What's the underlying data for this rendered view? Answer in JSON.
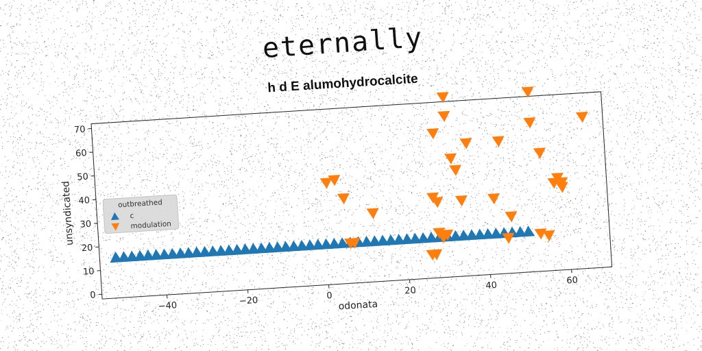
{
  "title": "eternally",
  "chart_data": {
    "type": "scatter",
    "title": "h d E alumohydrocalcite",
    "xlabel": "odonata",
    "ylabel": "unsyndicated",
    "xlim": [
      -56,
      70
    ],
    "ylim": [
      -2,
      72
    ],
    "xticks": [
      -40,
      -20,
      0,
      20,
      40,
      60
    ],
    "yticks": [
      0,
      10,
      20,
      30,
      40,
      50,
      60,
      70
    ],
    "grid": false,
    "legend": {
      "title": "outbreathed",
      "placement": "center-left"
    },
    "series": [
      {
        "name": "c",
        "marker": "triangle-up",
        "color": "#1f77b4",
        "x": [
          -52,
          -50,
          -48,
          -46,
          -44,
          -42,
          -40,
          -38,
          -36,
          -34,
          -32,
          -30,
          -28,
          -26,
          -24,
          -22,
          -20,
          -18,
          -16,
          -14,
          -12,
          -10,
          -8,
          -6,
          -4,
          -2,
          0,
          2,
          4,
          6,
          8,
          10,
          12,
          14,
          16,
          18,
          20,
          22,
          24,
          26,
          28,
          30,
          32,
          34,
          36,
          38,
          40,
          42,
          44,
          46,
          48,
          50
        ],
        "y": [
          15,
          15,
          15,
          15,
          15,
          15,
          15,
          15,
          15,
          15,
          15,
          15,
          15,
          15,
          15,
          15,
          15,
          15,
          15,
          15,
          15,
          15,
          15,
          15,
          15,
          15,
          15,
          15,
          15,
          15,
          15,
          15,
          15,
          15,
          15,
          15,
          15,
          15,
          15,
          15,
          15,
          15,
          15,
          15,
          15,
          15,
          15,
          15,
          15,
          15,
          15,
          15
        ]
      },
      {
        "name": "modulation",
        "marker": "triangle-down",
        "color": "#ff7f0e",
        "x": [
          1,
          3,
          5,
          6,
          7,
          12,
          26,
          27,
          27,
          28,
          28,
          28,
          29,
          30,
          31,
          31,
          32,
          33,
          34,
          36,
          42,
          44,
          45,
          46,
          52,
          52,
          53,
          54,
          55,
          57,
          58,
          59,
          59,
          65
        ],
        "y": [
          41,
          42,
          34,
          15,
          15,
          27,
          8,
          8,
          32,
          59,
          30,
          17,
          15,
          16,
          66,
          74,
          48,
          43,
          30,
          54,
          30,
          54,
          13,
          22,
          61,
          74,
          14,
          48,
          13,
          35,
          37,
          35,
          33,
          62
        ]
      }
    ]
  }
}
